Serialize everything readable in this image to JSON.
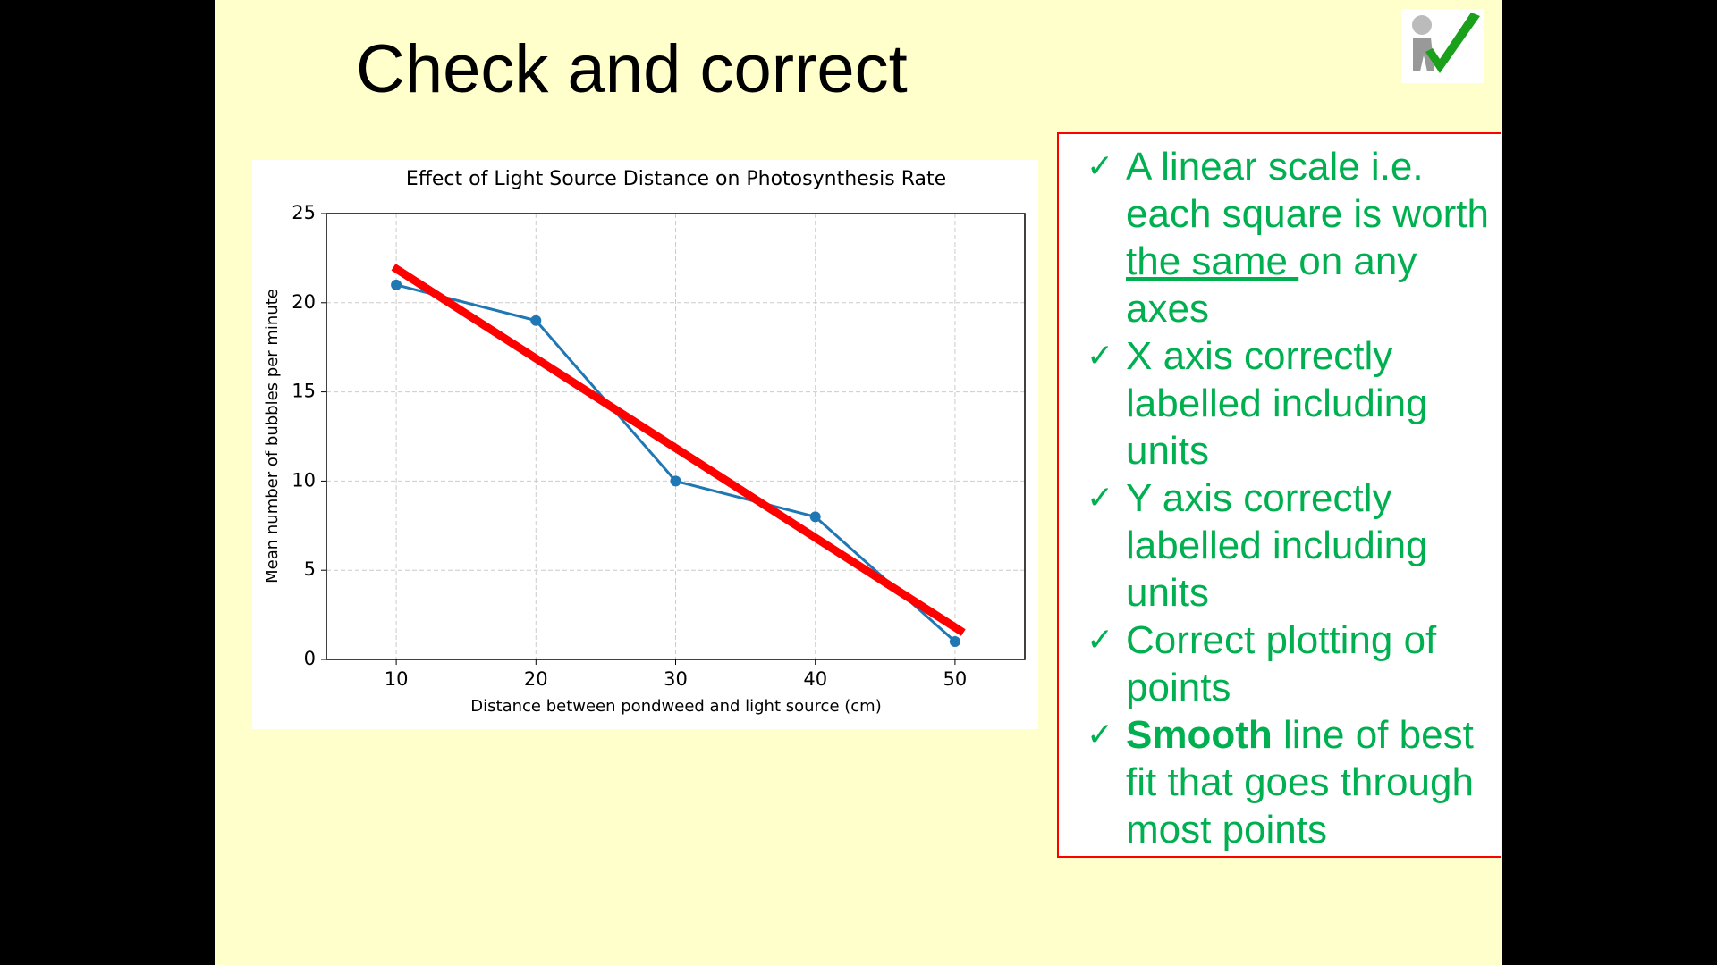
{
  "slide": {
    "title": "Check and correct",
    "items": [
      {
        "parts": [
          {
            "text": "A linear scale i.e. each square is worth "
          },
          {
            "text": "the same ",
            "style": "underline"
          },
          {
            "text": "on any axes"
          }
        ]
      },
      {
        "parts": [
          {
            "text": "X axis correctly labelled including units"
          }
        ]
      },
      {
        "parts": [
          {
            "text": "Y axis correctly labelled including units"
          }
        ]
      },
      {
        "parts": [
          {
            "text": "Correct plotting of points"
          }
        ]
      },
      {
        "parts": [
          {
            "text": "Smooth",
            "style": "bold"
          },
          {
            "text": " line of best fit that goes through most points"
          }
        ]
      }
    ]
  },
  "chart_data": {
    "type": "line",
    "title": "Effect of Light Source Distance on Photosynthesis Rate",
    "x_label": "Distance between pondweed and light source (cm)",
    "y_label": "Mean number of bubbles per minute",
    "x": [
      10,
      20,
      30,
      40,
      50
    ],
    "series": [
      {
        "color": "#1f77b4",
        "values": [
          21,
          19,
          10,
          8,
          1
        ]
      }
    ],
    "fit_line": {
      "color": "#ff0000",
      "x": [
        9.8,
        50.6
      ],
      "values": [
        22,
        1.5
      ]
    },
    "xlim": [
      5,
      55
    ],
    "ylim": [
      0,
      25
    ],
    "xticks": [
      10,
      20,
      30,
      40,
      50
    ],
    "yticks": [
      0,
      5,
      10,
      15,
      20,
      25
    ],
    "grid": true
  }
}
